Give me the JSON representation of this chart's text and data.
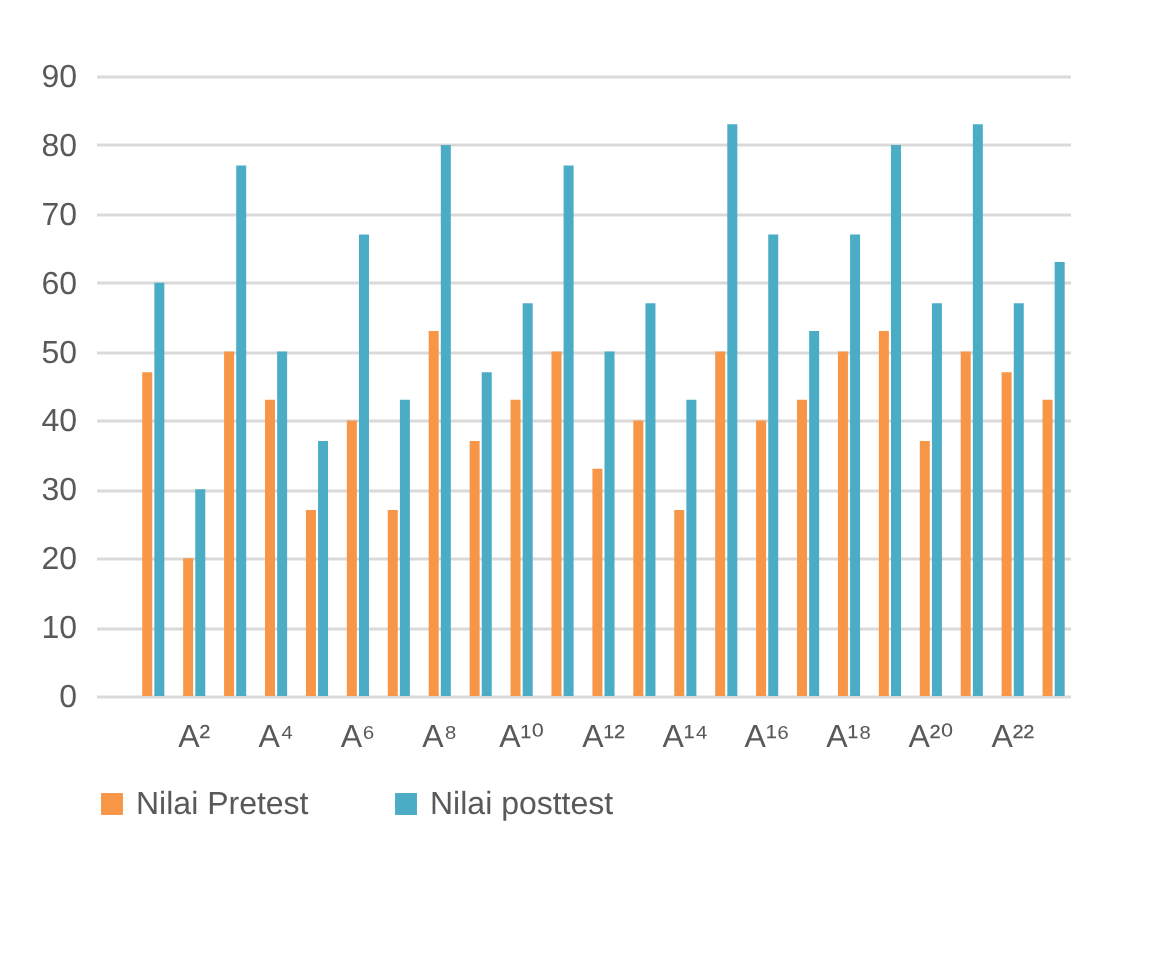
{
  "chart_data": {
    "type": "bar",
    "categories": [
      null,
      null,
      "A²",
      null,
      "A⁴",
      null,
      "A⁶",
      null,
      "A⁸",
      null,
      "A¹⁰",
      null,
      "A¹²",
      null,
      "A¹⁴",
      null,
      "A¹⁶",
      null,
      "A¹⁸",
      null,
      "A²⁰",
      null,
      "A²²",
      null
    ],
    "series": [
      {
        "name": "Nilai Pretest",
        "color": "#f79646",
        "values": [
          null,
          47,
          20,
          50,
          43,
          27,
          40,
          27,
          53,
          37,
          43,
          50,
          33,
          40,
          27,
          50,
          40,
          43,
          50,
          53,
          37,
          50,
          47,
          43
        ]
      },
      {
        "name": "Nilai posttest",
        "color": "#4bacc6",
        "values": [
          null,
          60,
          30,
          77,
          50,
          37,
          67,
          43,
          80,
          47,
          57,
          77,
          50,
          57,
          43,
          83,
          67,
          53,
          67,
          80,
          57,
          83,
          57,
          63
        ]
      }
    ],
    "ylim": [
      0,
      90
    ],
    "yticks": [
      0,
      10,
      20,
      30,
      40,
      50,
      60,
      70,
      80,
      90
    ],
    "grid": true,
    "legend": "bottom"
  }
}
